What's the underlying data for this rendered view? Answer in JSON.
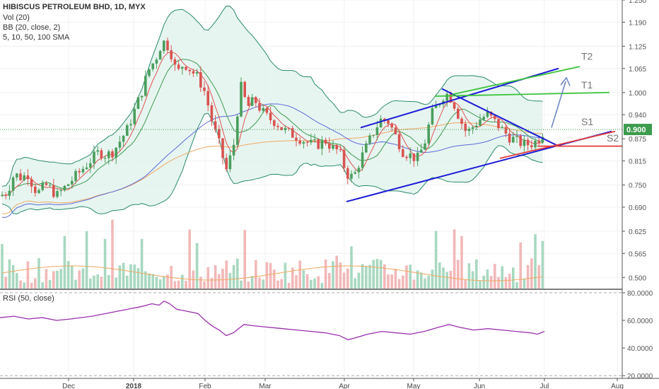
{
  "header": {
    "title": "HIBISCUS PETROLEUM BHD, 1D, MYX",
    "indicators": [
      "Vol (20)",
      "BB (20, close, 2)",
      "5, 10, 50, 100 SMA"
    ]
  },
  "rsi": {
    "label": "RSI (50, close)"
  },
  "colors": {
    "up": "#4a9e5c",
    "down": "#d9534f",
    "bb": "#2a8a6e",
    "bb_fill": "#e3f3ef",
    "sma5": "#e0544f",
    "sma10": "#3d9b4e",
    "sma50": "#5a6ad8",
    "sma100": "#f0a860",
    "trend_blue": "#1b1bd6",
    "green_line": "#3ac43a",
    "red_line": "#e33a3a",
    "rsi": "#9b2fae",
    "vol_up": "#a8d8c0",
    "vol_down": "#f2b8b8"
  },
  "chart_data": {
    "type": "candlestick",
    "price_axis": {
      "ticks": [
        "1.250",
        "1.190",
        "1.125",
        "1.065",
        "1.000",
        "0.940",
        "0.875",
        "0.815",
        "0.750",
        "0.690",
        "0.625",
        "0.565",
        "0.500"
      ],
      "range": [
        0.47,
        1.25
      ]
    },
    "current_price": "0.900",
    "time_axis": {
      "labels": [
        "Dec",
        "2018",
        "Feb",
        "Mar",
        "Apr",
        "May",
        "Jun",
        "Jul",
        "Aug"
      ]
    },
    "rsi_axis": {
      "ticks": [
        "80.0000",
        "60.0000",
        "40.0000",
        "20.0000"
      ],
      "range": [
        18,
        82
      ]
    },
    "price_path": [
      [
        0,
        0.72
      ],
      [
        10,
        0.73
      ],
      [
        20,
        0.78
      ],
      [
        30,
        0.77
      ],
      [
        40,
        0.78
      ],
      [
        48,
        0.74
      ],
      [
        56,
        0.73
      ],
      [
        64,
        0.75
      ],
      [
        72,
        0.74
      ],
      [
        80,
        0.72
      ],
      [
        90,
        0.74
      ],
      [
        100,
        0.76
      ],
      [
        110,
        0.78
      ],
      [
        120,
        0.8
      ],
      [
        130,
        0.82
      ],
      [
        140,
        0.84
      ],
      [
        150,
        0.83
      ],
      [
        160,
        0.84
      ],
      [
        170,
        0.87
      ],
      [
        180,
        0.9
      ],
      [
        190,
        0.95
      ],
      [
        200,
        1.0
      ],
      [
        210,
        1.06
      ],
      [
        220,
        1.09
      ],
      [
        230,
        1.14
      ],
      [
        240,
        1.12
      ],
      [
        250,
        1.05
      ],
      [
        260,
        1.08
      ],
      [
        270,
        1.06
      ],
      [
        280,
        1.04
      ],
      [
        290,
        1.0
      ],
      [
        300,
        0.92
      ],
      [
        310,
        0.86
      ],
      [
        320,
        0.79
      ],
      [
        330,
        0.85
      ],
      [
        340,
        1.02
      ],
      [
        350,
        0.96
      ],
      [
        360,
        0.98
      ],
      [
        370,
        0.95
      ],
      [
        380,
        0.93
      ],
      [
        390,
        0.92
      ],
      [
        400,
        0.9
      ],
      [
        410,
        0.89
      ],
      [
        420,
        0.88
      ],
      [
        430,
        0.87
      ],
      [
        440,
        0.86
      ],
      [
        450,
        0.86
      ],
      [
        460,
        0.87
      ],
      [
        470,
        0.85
      ],
      [
        480,
        0.84
      ],
      [
        490,
        0.78
      ],
      [
        500,
        0.77
      ],
      [
        510,
        0.82
      ],
      [
        520,
        0.86
      ],
      [
        530,
        0.9
      ],
      [
        540,
        0.93
      ],
      [
        550,
        0.92
      ],
      [
        560,
        0.88
      ],
      [
        570,
        0.84
      ],
      [
        580,
        0.83
      ],
      [
        590,
        0.82
      ],
      [
        600,
        0.86
      ],
      [
        610,
        0.94
      ],
      [
        620,
        0.97
      ],
      [
        630,
        1.0
      ],
      [
        640,
        0.98
      ],
      [
        650,
        0.93
      ],
      [
        660,
        0.89
      ],
      [
        670,
        0.91
      ],
      [
        680,
        0.93
      ],
      [
        690,
        0.94
      ],
      [
        700,
        0.92
      ],
      [
        710,
        0.9
      ],
      [
        720,
        0.88
      ],
      [
        730,
        0.87
      ],
      [
        740,
        0.86
      ],
      [
        750,
        0.86
      ],
      [
        760,
        0.87
      ],
      [
        770,
        0.9
      ]
    ],
    "annotations": [
      {
        "label": "T2",
        "price": 1.077
      },
      {
        "label": "T1",
        "price": 1.0
      },
      {
        "label": "S1",
        "price": 0.91
      },
      {
        "label": "S2",
        "price": 0.86
      }
    ],
    "rsi_path": [
      [
        0,
        62
      ],
      [
        20,
        63
      ],
      [
        40,
        61
      ],
      [
        60,
        62
      ],
      [
        80,
        60
      ],
      [
        100,
        61
      ],
      [
        130,
        63
      ],
      [
        160,
        66
      ],
      [
        180,
        68
      ],
      [
        200,
        70
      ],
      [
        215,
        72
      ],
      [
        225,
        71
      ],
      [
        232,
        74
      ],
      [
        240,
        72
      ],
      [
        250,
        68
      ],
      [
        260,
        67
      ],
      [
        270,
        66
      ],
      [
        280,
        65
      ],
      [
        290,
        60
      ],
      [
        300,
        56
      ],
      [
        310,
        53
      ],
      [
        320,
        49
      ],
      [
        330,
        51
      ],
      [
        345,
        57
      ],
      [
        360,
        56
      ],
      [
        380,
        55
      ],
      [
        400,
        54
      ],
      [
        420,
        53
      ],
      [
        440,
        52
      ],
      [
        460,
        51
      ],
      [
        480,
        49
      ],
      [
        492,
        46
      ],
      [
        500,
        47
      ],
      [
        520,
        50
      ],
      [
        540,
        52
      ],
      [
        560,
        51
      ],
      [
        580,
        50
      ],
      [
        600,
        52
      ],
      [
        620,
        55
      ],
      [
        635,
        57
      ],
      [
        650,
        55
      ],
      [
        670,
        53
      ],
      [
        690,
        54
      ],
      [
        710,
        53
      ],
      [
        730,
        52
      ],
      [
        750,
        51
      ],
      [
        760,
        50
      ],
      [
        770,
        52
      ]
    ]
  }
}
